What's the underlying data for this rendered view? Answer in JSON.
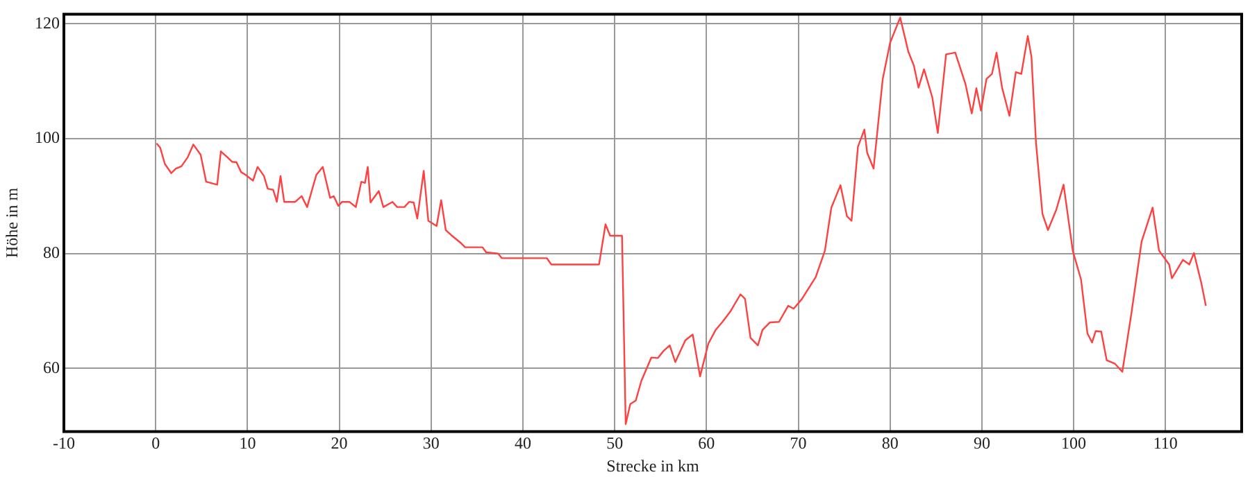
{
  "chart_data": {
    "type": "line",
    "xlabel": "Strecke in km",
    "ylabel": "Höhe in m",
    "xlim": [
      -10,
      118.3
    ],
    "ylim": [
      49,
      121.7
    ],
    "xticks": [
      -10,
      0,
      10,
      20,
      30,
      40,
      50,
      60,
      70,
      80,
      90,
      100,
      110
    ],
    "yticks": [
      60,
      80,
      100,
      120
    ],
    "grid": true,
    "legend": false,
    "marker": "none",
    "line_style": "solid",
    "series": [
      {
        "color": "#ff4040",
        "x": [
          0.1,
          0.5,
          1,
          1.7,
          2.2,
          2.8,
          3.5,
          4.1,
          4.9,
          5.5,
          6.7,
          7.1,
          7.8,
          8.3,
          8.8,
          9.3,
          9.8,
          10.6,
          11.1,
          11.8,
          12.2,
          12.8,
          13.2,
          13.6,
          14,
          15.2,
          15.9,
          16.5,
          17.5,
          18.2,
          19,
          19.4,
          19.9,
          20.3,
          21.1,
          21.8,
          22.4,
          22.8,
          23.1,
          23.4,
          24.3,
          24.8,
          25.8,
          26.3,
          27.1,
          27.6,
          28.1,
          28.5,
          29.2,
          29.7,
          30.6,
          31.1,
          31.6,
          32.2,
          33.2,
          33.7,
          35.6,
          36,
          37.3,
          37.7,
          42.6,
          43.1,
          48.3,
          49,
          49.5,
          50.8,
          51.2,
          51.7,
          52.3,
          52.9,
          54,
          54.7,
          55.3,
          56,
          56.6,
          57.7,
          58.5,
          59.3,
          60.2,
          61,
          61.7,
          62.6,
          63.7,
          64.2,
          64.8,
          65.6,
          66.1,
          66.9,
          67.9,
          68.9,
          69.5,
          70.4,
          71.9,
          72.9,
          73.6,
          74.6,
          75.3,
          75.8,
          76.5,
          77.2,
          77.5,
          78.2,
          79.2,
          80,
          81.1,
          82,
          82.6,
          83.1,
          83.7,
          84.6,
          85.2,
          86.1,
          87.1,
          88.2,
          88.9,
          89.4,
          89.9,
          90.5,
          91.1,
          91.6,
          92.2,
          93,
          93.7,
          94.3,
          95,
          95.4,
          95.9,
          96.6,
          97.2,
          98.1,
          98.9,
          99.9,
          100.8,
          101.5,
          102,
          102.4,
          103,
          103.6,
          104.5,
          105.3,
          106.3,
          107.4,
          108.6,
          109.3,
          110.4,
          110.7,
          111.9,
          112.6,
          113.1,
          113.9,
          114.4
        ],
        "values": [
          99.2,
          98.4,
          95.6,
          94,
          94.8,
          95.2,
          96.8,
          99,
          97.2,
          92.5,
          92,
          97.8,
          96.8,
          96,
          95.9,
          94.2,
          93.7,
          92.7,
          95.1,
          93.5,
          91.3,
          91.1,
          89,
          93.5,
          89,
          89,
          90,
          88.1,
          93.7,
          95.1,
          89.7,
          90,
          88.3,
          89,
          89,
          88.1,
          92.5,
          92.3,
          95.1,
          88.9,
          90.9,
          88.1,
          89,
          88.1,
          88.1,
          89,
          88.9,
          86.1,
          94.4,
          85.7,
          84.8,
          89.3,
          84.1,
          83.2,
          81.9,
          81.1,
          81.1,
          80.2,
          80,
          79.2,
          79.2,
          78.1,
          78.1,
          85.1,
          83.1,
          83.1,
          50.3,
          53.8,
          54.4,
          57.8,
          61.9,
          61.8,
          63,
          64,
          61.1,
          64.9,
          65.9,
          58.6,
          64.3,
          66.7,
          68,
          69.9,
          72.9,
          72.1,
          65.3,
          64,
          66.7,
          68,
          68.1,
          70.9,
          70.4,
          72.1,
          75.9,
          80.5,
          88,
          91.9,
          86.5,
          85.7,
          98.6,
          101.6,
          97.6,
          94.8,
          110.4,
          116.7,
          121.1,
          115.1,
          112.7,
          108.9,
          112.1,
          107.2,
          101,
          114.7,
          115,
          109.6,
          104.4,
          108.8,
          104.9,
          110.4,
          111.3,
          115,
          108.9,
          104,
          111.6,
          111.3,
          117.9,
          114.3,
          99.2,
          86.9,
          84.1,
          87.6,
          92,
          80.5,
          75.5,
          66.1,
          64.5,
          66.5,
          66.4,
          61.4,
          60.8,
          59.4,
          69.7,
          82.1,
          88,
          80.5,
          78.1,
          75.7,
          78.9,
          78.1,
          80.1,
          74.9,
          70.9
        ]
      }
    ]
  }
}
